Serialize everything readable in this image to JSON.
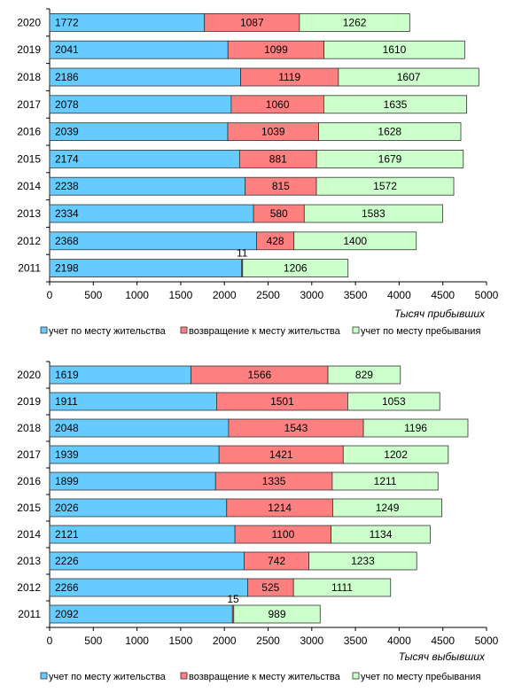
{
  "chart_data": [
    {
      "type": "bar",
      "orientation": "horizontal",
      "stacked": true,
      "categories": [
        "2020",
        "2019",
        "2018",
        "2017",
        "2016",
        "2015",
        "2014",
        "2013",
        "2012",
        "2011"
      ],
      "series": [
        {
          "name": "учет по месту жительства",
          "color": "#66ccff",
          "values": [
            1772,
            2041,
            2186,
            2078,
            2039,
            2174,
            2238,
            2334,
            2368,
            2198
          ]
        },
        {
          "name": "возвращение к месту жительства",
          "color": "#ff8080",
          "values": [
            1087,
            1099,
            1119,
            1060,
            1039,
            881,
            815,
            580,
            428,
            11
          ]
        },
        {
          "name": "учет по месту пребывания",
          "color": "#ccffcc",
          "values": [
            1262,
            1610,
            1607,
            1635,
            1628,
            1679,
            1572,
            1583,
            1400,
            1206
          ]
        }
      ],
      "xlabel": "Тысяч прибывших",
      "xlim": [
        0,
        5000
      ],
      "xticks": [
        "0",
        "500",
        "1000",
        "1500",
        "2000",
        "2500",
        "3000",
        "3500",
        "4000",
        "4500",
        "5000"
      ],
      "legend_position": "bottom"
    },
    {
      "type": "bar",
      "orientation": "horizontal",
      "stacked": true,
      "categories": [
        "2020",
        "2019",
        "2018",
        "2017",
        "2016",
        "2015",
        "2014",
        "2013",
        "2012",
        "2011"
      ],
      "series": [
        {
          "name": "учет по месту жительства",
          "color": "#66ccff",
          "values": [
            1619,
            1911,
            2048,
            1939,
            1899,
            2026,
            2121,
            2226,
            2266,
            2092
          ]
        },
        {
          "name": "возвращение к месту жительства",
          "color": "#ff8080",
          "values": [
            1566,
            1501,
            1543,
            1421,
            1335,
            1214,
            1100,
            742,
            525,
            15
          ]
        },
        {
          "name": "учет по месту пребывания",
          "color": "#ccffcc",
          "values": [
            829,
            1053,
            1196,
            1202,
            1211,
            1249,
            1134,
            1233,
            1111,
            989
          ]
        }
      ],
      "xlabel": "Тысяч выбывших",
      "xlim": [
        0,
        5000
      ],
      "xticks": [
        "0",
        "500",
        "1000",
        "1500",
        "2000",
        "2500",
        "3000",
        "3500",
        "4000",
        "4500",
        "5000"
      ],
      "legend_position": "bottom"
    }
  ]
}
